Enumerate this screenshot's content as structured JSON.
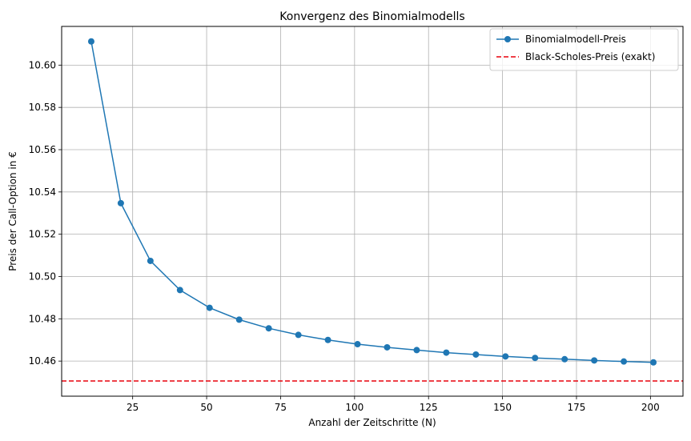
{
  "chart_data": {
    "type": "line",
    "title": "Konvergenz des Binomialmodells",
    "xlabel": "Anzahl der Zeitschritte (N)",
    "ylabel": "Preis der Call-Option in €",
    "xlim": [
      1,
      211
    ],
    "ylim": [
      10.4434,
      10.6183
    ],
    "xticks": [
      25,
      50,
      75,
      100,
      125,
      150,
      175,
      200
    ],
    "yticks": [
      10.46,
      10.48,
      10.5,
      10.52,
      10.54,
      10.56,
      10.58,
      10.6
    ],
    "grid": true,
    "legend_position": "top-right",
    "x": [
      11,
      21,
      31,
      41,
      51,
      61,
      71,
      81,
      91,
      101,
      111,
      121,
      131,
      141,
      151,
      161,
      171,
      181,
      191,
      201
    ],
    "series": [
      {
        "name": "Binomialmodell-Preis",
        "style": "line-markers",
        "color": "#1f77b4",
        "values": [
          10.6112,
          10.5347,
          10.5074,
          10.4936,
          10.4852,
          10.4796,
          10.4755,
          10.4724,
          10.47,
          10.468,
          10.4665,
          10.4652,
          10.464,
          10.4631,
          10.4622,
          10.4615,
          10.4609,
          10.4603,
          10.4598,
          10.4594
        ]
      },
      {
        "name": "Black-Scholes-Preis (exakt)",
        "style": "dashed-hline",
        "color": "#e8000b",
        "value": 10.4506
      }
    ]
  }
}
